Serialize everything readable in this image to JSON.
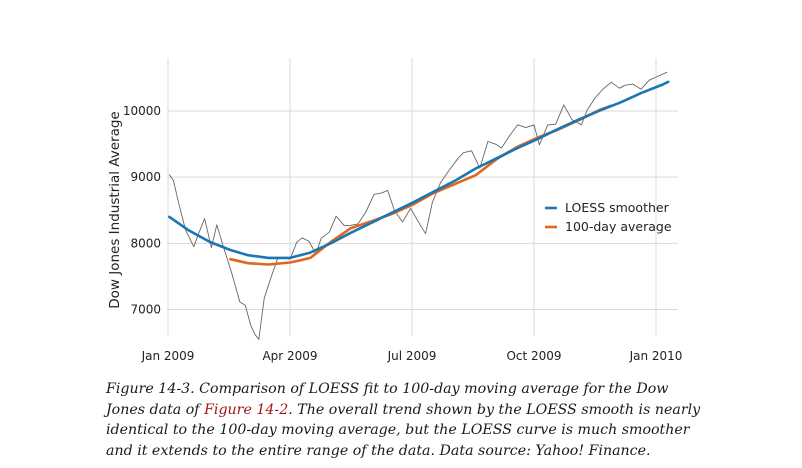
{
  "chart_data": {
    "type": "line",
    "ylabel": "Dow Jones Industrial Average",
    "x_ticks": [
      "Jan 2009",
      "Apr 2009",
      "Jul 2009",
      "Oct 2009",
      "Jan 2010"
    ],
    "y_ticks": [
      "7000",
      "8000",
      "9000",
      "10000"
    ],
    "xlim": [
      "2009-01-01",
      "2010-01-05"
    ],
    "ylim": [
      6600,
      10800
    ],
    "grid": true,
    "legend_position": "right",
    "series": [
      {
        "name": "LOESS smoother",
        "color": "#1b76b4",
        "x": [
          "2009-01-02",
          "2009-01-16",
          "2009-02-01",
          "2009-02-16",
          "2009-03-01",
          "2009-03-16",
          "2009-04-01",
          "2009-04-16",
          "2009-05-01",
          "2009-05-16",
          "2009-06-01",
          "2009-06-16",
          "2009-07-01",
          "2009-07-16",
          "2009-08-01",
          "2009-08-16",
          "2009-09-01",
          "2009-09-16",
          "2009-10-01",
          "2009-10-16",
          "2009-11-01",
          "2009-11-16",
          "2009-12-01",
          "2009-12-16",
          "2010-01-01",
          "2010-01-05"
        ],
        "y": [
          8400,
          8200,
          8020,
          7900,
          7820,
          7780,
          7780,
          7860,
          8000,
          8160,
          8320,
          8470,
          8620,
          8780,
          8950,
          9130,
          9290,
          9440,
          9580,
          9730,
          9880,
          10010,
          10130,
          10270,
          10400,
          10440
        ]
      },
      {
        "name": "100-day average",
        "color": "#e0671b",
        "x": [
          "2009-02-16",
          "2009-03-01",
          "2009-03-16",
          "2009-04-01",
          "2009-04-08",
          "2009-04-16",
          "2009-05-01",
          "2009-05-16",
          "2009-06-01",
          "2009-06-16",
          "2009-07-01",
          "2009-07-16",
          "2009-08-01",
          "2009-08-16",
          "2009-09-01",
          "2009-09-16",
          "2009-10-01",
          "2009-10-16",
          "2009-11-01",
          "2009-11-16",
          "2009-11-24"
        ],
        "y": [
          7760,
          7700,
          7680,
          7710,
          7740,
          7780,
          8020,
          8230,
          8340,
          8450,
          8590,
          8760,
          8900,
          9030,
          9280,
          9460,
          9600,
          9720,
          9870,
          10020,
          10080
        ]
      },
      {
        "name": "",
        "color": "#666666",
        "x": [
          "2009-01-02",
          "2009-01-05",
          "2009-01-09",
          "2009-01-14",
          "2009-01-20",
          "2009-01-23",
          "2009-01-28",
          "2009-02-02",
          "2009-02-06",
          "2009-02-11",
          "2009-02-17",
          "2009-02-23",
          "2009-02-27",
          "2009-03-03",
          "2009-03-06",
          "2009-03-09",
          "2009-03-13",
          "2009-03-18",
          "2009-03-23",
          "2009-03-27",
          "2009-04-01",
          "2009-04-06",
          "2009-04-10",
          "2009-04-15",
          "2009-04-20",
          "2009-04-24",
          "2009-04-30",
          "2009-05-05",
          "2009-05-11",
          "2009-05-15",
          "2009-05-21",
          "2009-05-27",
          "2009-06-02",
          "2009-06-08",
          "2009-06-12",
          "2009-06-17",
          "2009-06-23",
          "2009-06-29",
          "2009-07-06",
          "2009-07-10",
          "2009-07-15",
          "2009-07-21",
          "2009-07-27",
          "2009-08-03",
          "2009-08-07",
          "2009-08-13",
          "2009-08-19",
          "2009-08-25",
          "2009-08-31",
          "2009-09-04",
          "2009-09-10",
          "2009-09-16",
          "2009-09-22",
          "2009-09-28",
          "2009-10-02",
          "2009-10-08",
          "2009-10-14",
          "2009-10-20",
          "2009-10-26",
          "2009-11-02",
          "2009-11-06",
          "2009-11-12",
          "2009-11-18",
          "2009-11-24",
          "2009-11-30",
          "2009-12-04",
          "2009-12-10",
          "2009-12-16",
          "2009-12-22",
          "2009-12-28",
          "2010-01-04"
        ],
        "y": [
          9034,
          8952,
          8599,
          8200,
          7949,
          8116,
          8375,
          7936,
          8280,
          7939,
          7552,
          7115,
          7062,
          6763,
          6627,
          6547,
          7170,
          7486,
          7775,
          7777,
          7761,
          8017,
          8083,
          8029,
          7841,
          8076,
          8168,
          8410,
          8268,
          8268,
          8292,
          8473,
          8740,
          8764,
          8799,
          8497,
          8322,
          8529,
          8280,
          8146,
          8616,
          8916,
          9093,
          9286,
          9370,
          9398,
          9135,
          9539,
          9496,
          9441,
          9627,
          9791,
          9749,
          9789,
          9487,
          9786,
          9800,
          10092,
          9868,
          9790,
          10005,
          10197,
          10332,
          10434,
          10344,
          10388,
          10406,
          10328,
          10464,
          10520,
          10584
        ]
      }
    ]
  },
  "caption": {
    "part1": "Figure 14-3. Comparison of LOESS fit to 100-day moving average for the Dow Jones data of ",
    "ref": "Figure 14-2",
    "part2": ". The overall trend shown by the LOESS smooth is nearly identical to the 100-day moving average, but the LOESS curve is much smoother and it extends to the entire range of the data. Data source: Yahoo! Finance."
  }
}
